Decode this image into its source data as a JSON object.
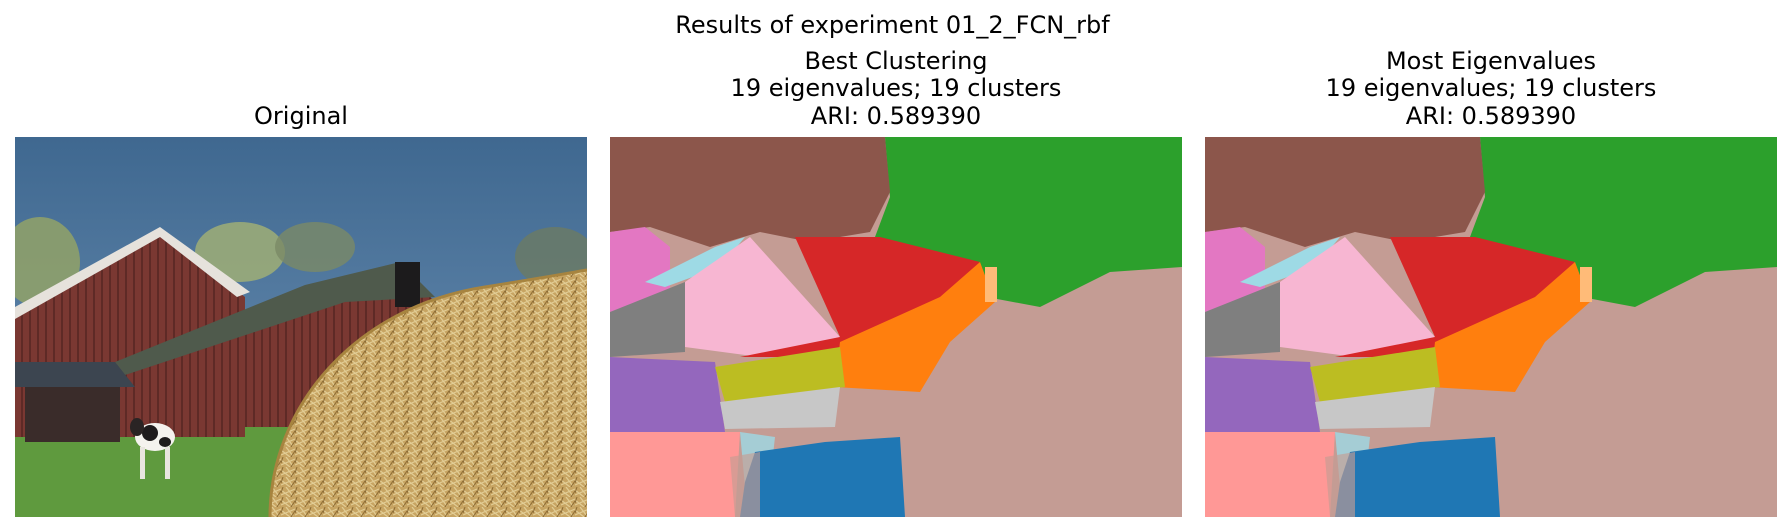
{
  "figure": {
    "suptitle": "Results of experiment 01_2_FCN_rbf"
  },
  "panels": {
    "original": {
      "title": "Original"
    },
    "best": {
      "title_lines": [
        "Best Clustering",
        "19 eigenvalues; 19 clusters",
        "ARI: 0.589390"
      ]
    },
    "most": {
      "title_lines": [
        "Most Eigenvalues",
        "19 eigenvalues; 19 clusters",
        "ARI: 0.589390"
      ]
    }
  },
  "colors": {
    "sky": "#4a7298",
    "barn_red": "#7e3a33",
    "roof_gray": "#4f5a4c",
    "hay": "#c9a866",
    "grass": "#5f9a3e",
    "cluster_brown": "#8c564b",
    "cluster_green": "#2ca02c",
    "cluster_pink": "#e377c2",
    "cluster_light_pink": "#f7b6d2",
    "cluster_red": "#d62728",
    "cluster_orange": "#ff7f0e",
    "cluster_gray": "#7f7f7f",
    "cluster_purple": "#9467bd",
    "cluster_olive": "#bcbd22",
    "cluster_light_gray": "#c7c7c7",
    "cluster_salmon": "#ff9896",
    "cluster_blue": "#1f77b4",
    "cluster_tan": "#c49c94",
    "cluster_cyan": "#9edae5",
    "cluster_light_orange": "#ffbb78"
  }
}
